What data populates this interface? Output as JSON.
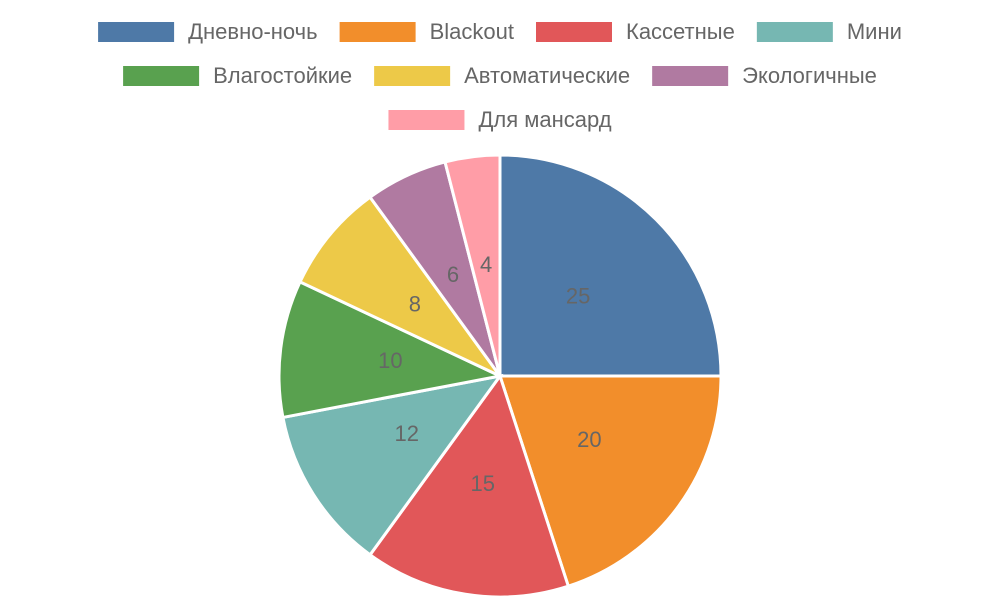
{
  "chart_data": {
    "type": "pie",
    "categories": [
      "Дневно-ночь",
      "Blackout",
      "Кассетные",
      "Мини",
      "Влагостойкие",
      "Автоматические",
      "Экологичные",
      "Для мансард"
    ],
    "values": [
      25,
      20,
      15,
      12,
      10,
      8,
      6,
      4
    ],
    "colors": [
      "#4e79a7",
      "#f28e2b",
      "#e15759",
      "#76b7b2",
      "#59a14f",
      "#edc948",
      "#b07aa1",
      "#ff9da7"
    ],
    "legend": "top"
  }
}
